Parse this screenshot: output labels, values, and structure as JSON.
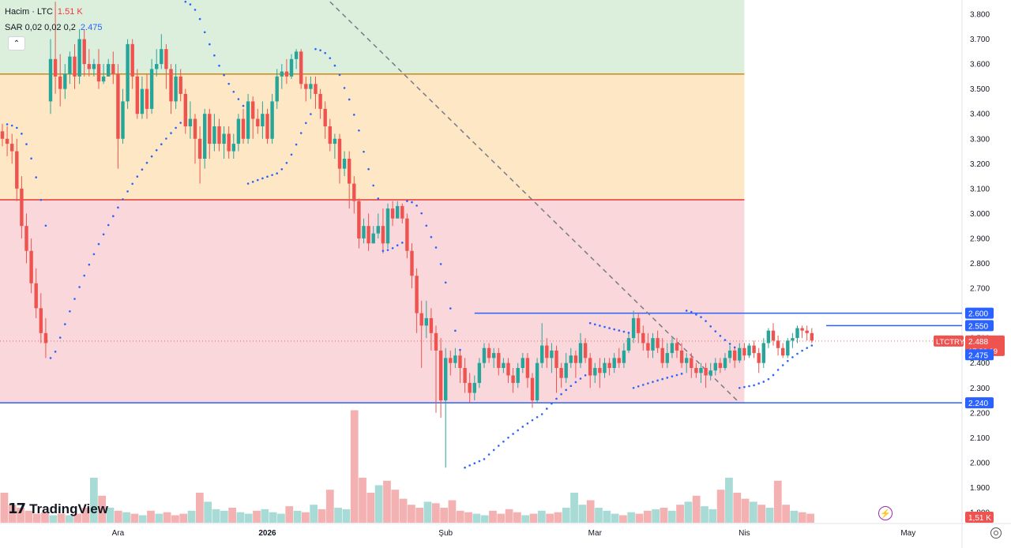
{
  "legend": {
    "volume_title": "Hacim · LTC",
    "volume_value": "1.51 K",
    "sar_title": "SAR 0,02 0,02 0,2",
    "sar_value": "2.475",
    "collapse_glyph": "⌃"
  },
  "branding": {
    "logo_mark": "17",
    "logo_text": "TradingView"
  },
  "icons": {
    "collapse": "chevron-up-icon",
    "flash": "lightning-icon",
    "settings": "gear-icon"
  },
  "colors": {
    "up": "#26a69a",
    "down": "#ef5350",
    "sar": "#2962ff",
    "hline": "#2962ff",
    "zone_green": "#dcefdc",
    "zone_orange": "#fde7c4",
    "zone_red": "#f9d7da",
    "red_line": "#e53935",
    "orange_line": "#c98a1a",
    "trend_line": "#787b86",
    "vol_up": "#9fd7d0",
    "vol_down": "#f3a8a8"
  },
  "chart_data": {
    "type": "candlestick",
    "symbol": "LTCTRY",
    "y_axis": {
      "min": 1.8,
      "max": 3.85,
      "ticks": [
        "3.800",
        "3.700",
        "3.600",
        "3.500",
        "3.400",
        "3.300",
        "3.200",
        "3.100",
        "3.000",
        "2.900",
        "2.800",
        "2.700",
        "2.600",
        "2.500",
        "2.400",
        "2.300",
        "2.200",
        "2.100",
        "2.000",
        "1.900",
        "1.800"
      ]
    },
    "x_axis": {
      "labels": [
        {
          "label": "Ara",
          "bar": 24
        },
        {
          "label": "2026",
          "bar": 55
        },
        {
          "label": "Şub",
          "bar": 92
        },
        {
          "label": "Mar",
          "bar": 123
        },
        {
          "label": "Nis",
          "bar": 154
        },
        {
          "label": "May",
          "bar": 188
        }
      ]
    },
    "zones": [
      {
        "from": 3.56,
        "to": 3.9,
        "color": "zone_green"
      },
      {
        "from": 3.055,
        "to": 3.56,
        "color": "zone_orange"
      },
      {
        "from": 2.24,
        "to": 3.055,
        "color": "zone_red"
      }
    ],
    "zone_end_bar": 154,
    "horizontal_lines": [
      {
        "price": 3.56,
        "color": "orange_line",
        "end_bar": 154
      },
      {
        "price": 3.055,
        "color": "red_line",
        "end_bar": 154
      },
      {
        "price": 2.6,
        "color": "hline",
        "start_bar": 98,
        "label": "2.600"
      },
      {
        "price": 2.55,
        "color": "hline",
        "start_bar": 171,
        "label": "2.550"
      },
      {
        "price": 2.24,
        "color": "hline",
        "label": "2.240"
      }
    ],
    "trend_line": {
      "from": {
        "bar": 68,
        "price": 3.85
      },
      "to": {
        "bar": 153,
        "price": 2.24
      }
    },
    "price_labels": [
      {
        "text": "2.488",
        "sub": "17:26:19",
        "price": 2.488,
        "symbol": "LTCTRY"
      },
      {
        "text": "2.475",
        "price": 2.452
      }
    ],
    "volume_label": "1,51 K",
    "candles": [
      [
        3.33,
        3.3,
        3.36,
        3.27
      ],
      [
        3.3,
        3.28,
        3.35,
        3.23
      ],
      [
        3.28,
        3.25,
        3.32,
        3.2
      ],
      [
        3.25,
        3.1,
        3.3,
        3.05
      ],
      [
        3.1,
        2.95,
        3.15,
        2.9
      ],
      [
        2.95,
        2.85,
        3.0,
        2.8
      ],
      [
        2.85,
        2.72,
        2.9,
        2.68
      ],
      [
        2.72,
        2.62,
        2.78,
        2.58
      ],
      [
        2.62,
        2.52,
        2.68,
        2.48
      ],
      [
        2.52,
        2.48,
        2.58,
        2.42
      ],
      [
        3.45,
        3.62,
        3.7,
        3.4
      ],
      [
        3.62,
        3.55,
        3.85,
        3.48
      ],
      [
        3.55,
        3.5,
        3.64,
        3.43
      ],
      [
        3.5,
        3.56,
        3.6,
        3.46
      ],
      [
        3.56,
        3.63,
        3.65,
        3.52
      ],
      [
        3.63,
        3.55,
        3.68,
        3.5
      ],
      [
        3.55,
        3.7,
        3.74,
        3.52
      ],
      [
        3.7,
        3.6,
        3.74,
        3.55
      ],
      [
        3.6,
        3.58,
        3.66,
        3.55
      ],
      [
        3.58,
        3.6,
        3.62,
        3.55
      ],
      [
        3.6,
        3.53,
        3.66,
        3.5
      ],
      [
        3.53,
        3.55,
        3.6,
        3.52
      ],
      [
        3.55,
        3.6,
        3.62,
        3.55
      ],
      [
        3.6,
        3.56,
        3.65,
        3.52
      ],
      [
        3.56,
        3.3,
        3.6,
        3.18
      ],
      [
        3.3,
        3.45,
        3.5,
        3.28
      ],
      [
        3.45,
        3.68,
        3.7,
        3.42
      ],
      [
        3.68,
        3.55,
        3.7,
        3.5
      ],
      [
        3.55,
        3.4,
        3.58,
        3.38
      ],
      [
        3.4,
        3.5,
        3.55,
        3.38
      ],
      [
        3.5,
        3.42,
        3.56,
        3.38
      ],
      [
        3.42,
        3.58,
        3.62,
        3.4
      ],
      [
        3.58,
        3.6,
        3.66,
        3.55
      ],
      [
        3.6,
        3.66,
        3.72,
        3.58
      ],
      [
        3.66,
        3.58,
        3.68,
        3.5
      ],
      [
        3.58,
        3.45,
        3.6,
        3.4
      ],
      [
        3.45,
        3.55,
        3.6,
        3.42
      ],
      [
        3.55,
        3.48,
        3.58,
        3.45
      ],
      [
        3.48,
        3.35,
        3.5,
        3.32
      ],
      [
        3.35,
        3.38,
        3.45,
        3.3
      ],
      [
        3.38,
        3.3,
        3.4,
        3.2
      ],
      [
        3.3,
        3.22,
        3.35,
        3.12
      ],
      [
        3.22,
        3.4,
        3.42,
        3.18
      ],
      [
        3.4,
        3.28,
        3.42,
        3.22
      ],
      [
        3.28,
        3.35,
        3.4,
        3.25
      ],
      [
        3.35,
        3.28,
        3.38,
        3.25
      ],
      [
        3.28,
        3.32,
        3.35,
        3.22
      ],
      [
        3.32,
        3.25,
        3.35,
        3.22
      ],
      [
        3.25,
        3.28,
        3.32,
        3.22
      ],
      [
        3.28,
        3.38,
        3.4,
        3.25
      ],
      [
        3.38,
        3.3,
        3.42,
        3.28
      ],
      [
        3.3,
        3.45,
        3.48,
        3.28
      ],
      [
        3.45,
        3.38,
        3.47,
        3.3
      ],
      [
        3.38,
        3.35,
        3.42,
        3.32
      ],
      [
        3.35,
        3.4,
        3.45,
        3.3
      ],
      [
        3.4,
        3.3,
        3.42,
        3.28
      ],
      [
        3.3,
        3.45,
        3.48,
        3.28
      ],
      [
        3.45,
        3.55,
        3.58,
        3.42
      ],
      [
        3.55,
        3.57,
        3.6,
        3.5
      ],
      [
        3.57,
        3.55,
        3.62,
        3.52
      ],
      [
        3.55,
        3.62,
        3.64,
        3.54
      ],
      [
        3.62,
        3.65,
        3.66,
        3.58
      ],
      [
        3.65,
        3.52,
        3.66,
        3.5
      ],
      [
        3.52,
        3.5,
        3.55,
        3.45
      ],
      [
        3.5,
        3.52,
        3.55,
        3.46
      ],
      [
        3.52,
        3.48,
        3.55,
        3.42
      ],
      [
        3.48,
        3.42,
        3.5,
        3.38
      ],
      [
        3.42,
        3.35,
        3.45,
        3.3
      ],
      [
        3.35,
        3.28,
        3.38,
        3.25
      ],
      [
        3.28,
        3.3,
        3.32,
        3.22
      ],
      [
        3.3,
        3.18,
        3.32,
        3.12
      ],
      [
        3.18,
        3.22,
        3.25,
        3.15
      ],
      [
        3.22,
        3.12,
        3.25,
        3.02
      ],
      [
        3.12,
        3.05,
        3.15,
        3.0
      ],
      [
        3.05,
        2.9,
        3.06,
        2.86
      ],
      [
        2.9,
        2.95,
        2.98,
        2.88
      ],
      [
        2.95,
        2.88,
        3.0,
        2.85
      ],
      [
        2.88,
        2.92,
        2.95,
        2.88
      ],
      [
        2.92,
        2.95,
        3.0,
        2.9
      ],
      [
        2.95,
        2.88,
        3.02,
        2.84
      ],
      [
        2.88,
        3.02,
        3.04,
        2.86
      ],
      [
        3.02,
        2.98,
        3.05,
        2.95
      ],
      [
        2.98,
        3.03,
        3.05,
        2.98
      ],
      [
        3.03,
        2.98,
        3.04,
        2.96
      ],
      [
        2.98,
        2.85,
        3.0,
        2.82
      ],
      [
        2.85,
        2.75,
        2.88,
        2.7
      ],
      [
        2.75,
        2.6,
        2.78,
        2.52
      ],
      [
        2.6,
        2.55,
        2.65,
        2.38
      ],
      [
        2.55,
        2.58,
        2.65,
        2.5
      ],
      [
        2.58,
        2.52,
        2.62,
        2.45
      ],
      [
        2.52,
        2.45,
        2.55,
        2.2
      ],
      [
        2.45,
        2.25,
        2.5,
        2.18
      ],
      [
        2.25,
        2.42,
        2.46,
        1.98
      ],
      [
        2.42,
        2.4,
        2.45,
        2.35
      ],
      [
        2.4,
        2.43,
        2.46,
        2.38
      ],
      [
        2.43,
        2.38,
        2.45,
        2.32
      ],
      [
        2.38,
        2.32,
        2.42,
        2.28
      ],
      [
        2.32,
        2.28,
        2.36,
        2.24
      ],
      [
        2.28,
        2.32,
        2.35,
        2.25
      ],
      [
        2.32,
        2.4,
        2.42,
        2.3
      ],
      [
        2.4,
        2.46,
        2.48,
        2.38
      ],
      [
        2.46,
        2.42,
        2.48,
        2.4
      ],
      [
        2.42,
        2.44,
        2.46,
        2.38
      ],
      [
        2.44,
        2.38,
        2.46,
        2.35
      ],
      [
        2.38,
        2.4,
        2.42,
        2.36
      ],
      [
        2.4,
        2.35,
        2.42,
        2.32
      ],
      [
        2.35,
        2.32,
        2.38,
        2.28
      ],
      [
        2.32,
        2.38,
        2.4,
        2.3
      ],
      [
        2.38,
        2.42,
        2.44,
        2.36
      ],
      [
        2.42,
        2.34,
        2.44,
        2.3
      ],
      [
        2.34,
        2.25,
        2.36,
        2.22
      ],
      [
        2.25,
        2.4,
        2.42,
        2.24
      ],
      [
        2.4,
        2.47,
        2.56,
        2.38
      ],
      [
        2.47,
        2.42,
        2.5,
        2.38
      ],
      [
        2.42,
        2.45,
        2.48,
        2.36
      ],
      [
        2.45,
        2.38,
        2.47,
        2.28
      ],
      [
        2.38,
        2.34,
        2.4,
        2.3
      ],
      [
        2.34,
        2.4,
        2.44,
        2.32
      ],
      [
        2.4,
        2.43,
        2.46,
        2.38
      ],
      [
        2.43,
        2.4,
        2.45,
        2.34
      ],
      [
        2.4,
        2.48,
        2.52,
        2.38
      ],
      [
        2.48,
        2.42,
        2.5,
        2.4
      ],
      [
        2.42,
        2.35,
        2.44,
        2.3
      ],
      [
        2.35,
        2.38,
        2.4,
        2.32
      ],
      [
        2.38,
        2.36,
        2.42,
        2.3
      ],
      [
        2.36,
        2.4,
        2.42,
        2.34
      ],
      [
        2.4,
        2.38,
        2.42,
        2.35
      ],
      [
        2.38,
        2.42,
        2.44,
        2.36
      ],
      [
        2.42,
        2.4,
        2.46,
        2.38
      ],
      [
        2.4,
        2.45,
        2.48,
        2.38
      ],
      [
        2.45,
        2.5,
        2.52,
        2.44
      ],
      [
        2.5,
        2.58,
        2.61,
        2.48
      ],
      [
        2.58,
        2.52,
        2.6,
        2.48
      ],
      [
        2.52,
        2.48,
        2.55,
        2.45
      ],
      [
        2.48,
        2.45,
        2.52,
        2.42
      ],
      [
        2.45,
        2.5,
        2.52,
        2.42
      ],
      [
        2.5,
        2.46,
        2.53,
        2.44
      ],
      [
        2.46,
        2.4,
        2.5,
        2.38
      ],
      [
        2.4,
        2.44,
        2.48,
        2.38
      ],
      [
        2.44,
        2.48,
        2.5,
        2.42
      ],
      [
        2.48,
        2.45,
        2.5,
        2.42
      ],
      [
        2.45,
        2.4,
        2.48,
        2.38
      ],
      [
        2.4,
        2.42,
        2.44,
        2.36
      ],
      [
        2.42,
        2.38,
        2.44,
        2.34
      ],
      [
        2.38,
        2.36,
        2.4,
        2.34
      ],
      [
        2.36,
        2.38,
        2.4,
        2.32
      ],
      [
        2.38,
        2.35,
        2.4,
        2.3
      ],
      [
        2.35,
        2.37,
        2.4,
        2.33
      ],
      [
        2.37,
        2.4,
        2.42,
        2.35
      ],
      [
        2.4,
        2.38,
        2.42,
        2.36
      ],
      [
        2.38,
        2.42,
        2.44,
        2.37
      ],
      [
        2.42,
        2.45,
        2.47,
        2.4
      ],
      [
        2.45,
        2.41,
        2.46,
        2.38
      ],
      [
        2.41,
        2.46,
        2.48,
        2.4
      ],
      [
        2.46,
        2.43,
        2.48,
        2.41
      ],
      [
        2.43,
        2.47,
        2.48,
        2.42
      ],
      [
        2.47,
        2.44,
        2.49,
        2.42
      ],
      [
        2.44,
        2.4,
        2.46,
        2.36
      ],
      [
        2.4,
        2.48,
        2.5,
        2.38
      ],
      [
        2.48,
        2.53,
        2.54,
        2.46
      ],
      [
        2.53,
        2.49,
        2.56,
        2.47
      ],
      [
        2.49,
        2.46,
        2.51,
        2.43
      ],
      [
        2.46,
        2.43,
        2.48,
        2.42
      ],
      [
        2.43,
        2.49,
        2.5,
        2.42
      ],
      [
        2.49,
        2.5,
        2.52,
        2.46
      ],
      [
        2.5,
        2.54,
        2.55,
        2.48
      ],
      [
        2.54,
        2.53,
        2.55,
        2.5
      ],
      [
        2.53,
        2.52,
        2.55,
        2.49
      ],
      [
        2.52,
        2.49,
        2.54,
        2.48
      ]
    ],
    "volumes": [
      0.2,
      0.12,
      0.1,
      0.08,
      0.06,
      0.07,
      0.05,
      0.06,
      0.05,
      0.06,
      0.1,
      0.3,
      0.18,
      0.1,
      0.08,
      0.07,
      0.06,
      0.05,
      0.08,
      0.06,
      0.07,
      0.05,
      0.06,
      0.08,
      0.2,
      0.14,
      0.09,
      0.08,
      0.1,
      0.07,
      0.06,
      0.08,
      0.09,
      0.07,
      0.06,
      0.11,
      0.08,
      0.07,
      0.12,
      0.09,
      0.22,
      0.1,
      0.09,
      0.75,
      0.3,
      0.2,
      0.25,
      0.28,
      0.22,
      0.16,
      0.12,
      0.1,
      0.14,
      0.13,
      0.1,
      0.15,
      0.08,
      0.07,
      0.06,
      0.05,
      0.08,
      0.06,
      0.09,
      0.07,
      0.05,
      0.06,
      0.08,
      0.06,
      0.07,
      0.1,
      0.2,
      0.12,
      0.15,
      0.1,
      0.08,
      0.06,
      0.05,
      0.07,
      0.06,
      0.08,
      0.09,
      0.1,
      0.08,
      0.12,
      0.14,
      0.18,
      0.11,
      0.09,
      0.22,
      0.3,
      0.2,
      0.16,
      0.14,
      0.12,
      0.1,
      0.28,
      0.12,
      0.08,
      0.07,
      0.06
    ]
  }
}
